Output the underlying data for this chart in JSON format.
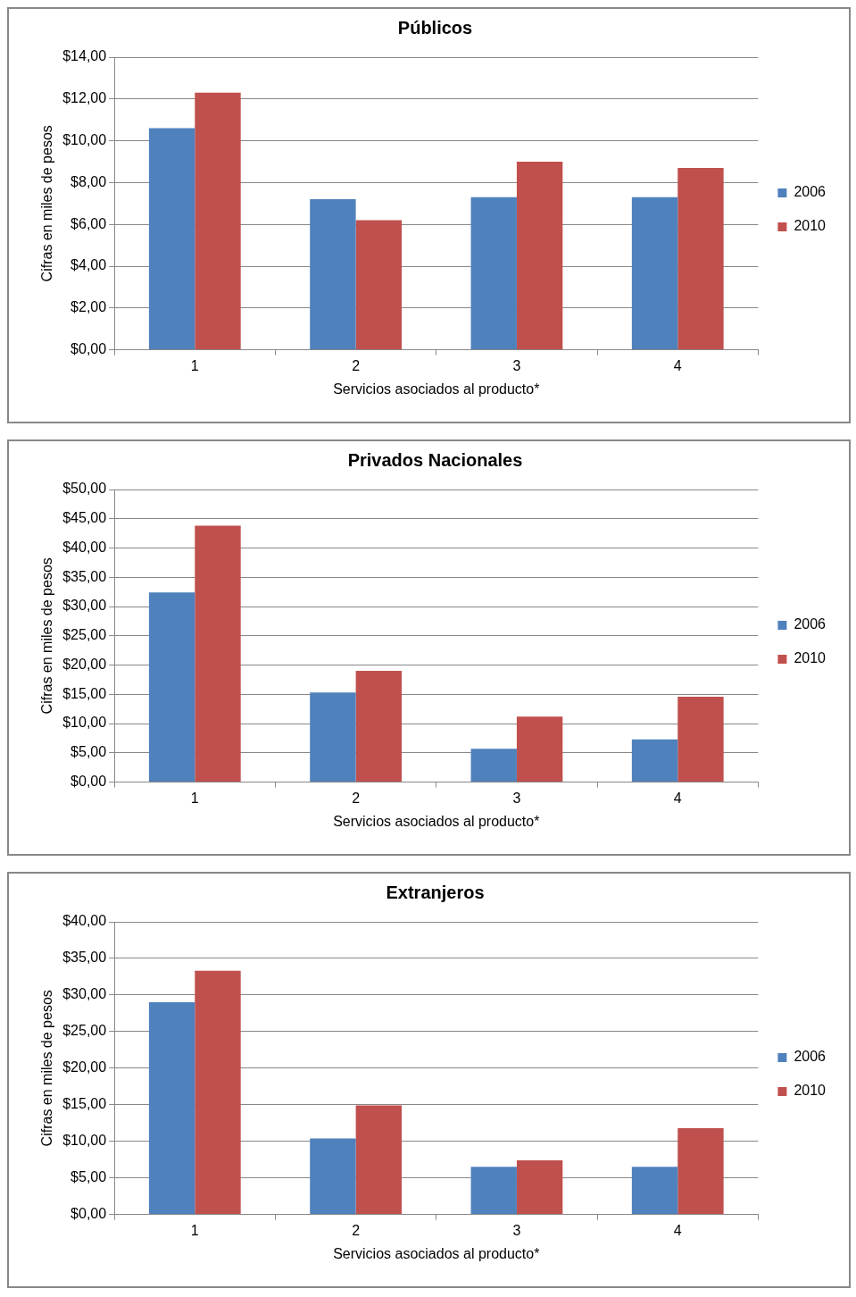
{
  "chart_data": [
    {
      "type": "bar",
      "title": "Públicos",
      "xlabel": "Servicios asociados al producto*",
      "ylabel": "Cifras en miles de pesos",
      "categories": [
        "1",
        "2",
        "3",
        "4"
      ],
      "series": [
        {
          "name": "2006",
          "color": "#4f81bd",
          "values": [
            10.6,
            7.2,
            7.3,
            7.3
          ]
        },
        {
          "name": "2010",
          "color": "#c0504d",
          "values": [
            12.3,
            6.2,
            9.0,
            8.7
          ]
        }
      ],
      "ylim": [
        0,
        14
      ],
      "yticks": [
        {
          "value": 0,
          "label": "$0,00"
        },
        {
          "value": 2,
          "label": "$2,00"
        },
        {
          "value": 4,
          "label": "$4,00"
        },
        {
          "value": 6,
          "label": "$6,00"
        },
        {
          "value": 8,
          "label": "$8,00"
        },
        {
          "value": 10,
          "label": "$10,00"
        },
        {
          "value": 12,
          "label": "$12,00"
        },
        {
          "value": 14,
          "label": "$14,00"
        }
      ],
      "grid": "y",
      "legend": "right"
    },
    {
      "type": "bar",
      "title": "Privados Nacionales",
      "xlabel": "Servicios asociados al producto*",
      "ylabel": "Cifras en miles de pesos",
      "categories": [
        "1",
        "2",
        "3",
        "4"
      ],
      "series": [
        {
          "name": "2006",
          "color": "#4f81bd",
          "values": [
            32.4,
            15.3,
            5.7,
            7.3
          ]
        },
        {
          "name": "2010",
          "color": "#c0504d",
          "values": [
            43.8,
            19.0,
            11.2,
            14.6
          ]
        }
      ],
      "ylim": [
        0,
        50
      ],
      "yticks": [
        {
          "value": 0,
          "label": "$0,00"
        },
        {
          "value": 5,
          "label": "$5,00"
        },
        {
          "value": 10,
          "label": "$10,00"
        },
        {
          "value": 15,
          "label": "$15,00"
        },
        {
          "value": 20,
          "label": "$20,00"
        },
        {
          "value": 25,
          "label": "$25,00"
        },
        {
          "value": 30,
          "label": "$30,00"
        },
        {
          "value": 35,
          "label": "$35,00"
        },
        {
          "value": 40,
          "label": "$40,00"
        },
        {
          "value": 45,
          "label": "$45,00"
        },
        {
          "value": 50,
          "label": "$50,00"
        }
      ],
      "grid": "y",
      "legend": "right"
    },
    {
      "type": "bar",
      "title": "Extranjeros",
      "xlabel": "Servicios asociados al producto*",
      "ylabel": "Cifras en miles de pesos",
      "categories": [
        "1",
        "2",
        "3",
        "4"
      ],
      "series": [
        {
          "name": "2006",
          "color": "#4f81bd",
          "values": [
            29.0,
            10.4,
            6.5,
            6.5
          ]
        },
        {
          "name": "2010",
          "color": "#c0504d",
          "values": [
            33.3,
            14.9,
            7.4,
            11.8
          ]
        }
      ],
      "ylim": [
        0,
        40
      ],
      "yticks": [
        {
          "value": 0,
          "label": "$0,00"
        },
        {
          "value": 5,
          "label": "$5,00"
        },
        {
          "value": 10,
          "label": "$10,00"
        },
        {
          "value": 15,
          "label": "$15,00"
        },
        {
          "value": 20,
          "label": "$20,00"
        },
        {
          "value": 25,
          "label": "$25,00"
        },
        {
          "value": 30,
          "label": "$30,00"
        },
        {
          "value": 35,
          "label": "$35,00"
        },
        {
          "value": 40,
          "label": "$40,00"
        }
      ],
      "grid": "y",
      "legend": "right"
    }
  ]
}
